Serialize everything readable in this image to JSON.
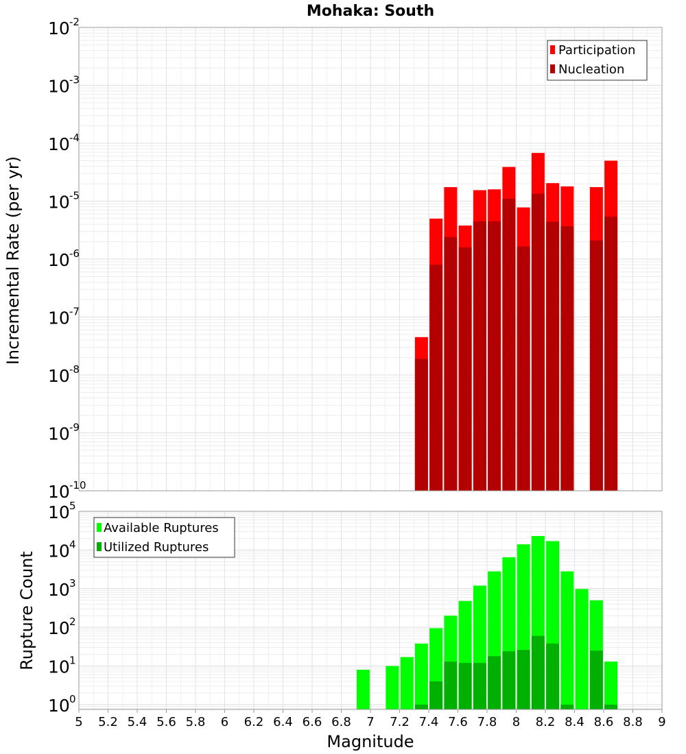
{
  "chart_data": [
    {
      "type": "bar",
      "title": "Mohaka: South",
      "ylabel": "Incremental Rate (per yr)",
      "xlabel": "",
      "yscale": "log",
      "ylim": [
        1e-10,
        0.01
      ],
      "xlim": [
        5,
        9
      ],
      "grid": true,
      "legend_position": "top-right",
      "series": [
        {
          "name": "Participation",
          "color": "#ff0000",
          "x": [
            7.35,
            7.45,
            7.55,
            7.65,
            7.75,
            7.85,
            7.95,
            8.05,
            8.15,
            8.25,
            8.35,
            8.55,
            8.65
          ],
          "values": [
            4.5e-08,
            5e-06,
            1.75e-05,
            3.8e-06,
            1.55e-05,
            1.6e-05,
            3.9e-05,
            7.8e-06,
            6.8e-05,
            2.05e-05,
            1.8e-05,
            1.75e-05,
            5e-05
          ]
        },
        {
          "name": "Nucleation",
          "color": "#b30000",
          "x": [
            7.35,
            7.45,
            7.55,
            7.65,
            7.75,
            7.85,
            7.95,
            8.05,
            8.15,
            8.25,
            8.35,
            8.55,
            8.65
          ],
          "values": [
            1.9e-08,
            8e-07,
            2.4e-06,
            1.6e-06,
            4.5e-06,
            4.5e-06,
            1.1e-05,
            1.65e-06,
            1.35e-05,
            4.4e-06,
            3.7e-06,
            2.1e-06,
            5.4e-06
          ]
        }
      ]
    },
    {
      "type": "bar",
      "title": "",
      "ylabel": "Rupture Count",
      "xlabel": "Magnitude",
      "yscale": "log",
      "ylim": [
        0.75,
        100000.0
      ],
      "xlim": [
        5,
        9
      ],
      "xticks": [
        "5",
        "5.2",
        "5.4",
        "5.6",
        "5.8",
        "6",
        "6.2",
        "6.4",
        "6.6",
        "6.8",
        "7",
        "7.2",
        "7.4",
        "7.6",
        "7.8",
        "8",
        "8.2",
        "8.4",
        "8.6",
        "8.8",
        "9"
      ],
      "grid": true,
      "legend_position": "top-left",
      "series": [
        {
          "name": "Available Ruptures",
          "color": "#00ff00",
          "x": [
            6.95,
            7.15,
            7.25,
            7.35,
            7.45,
            7.55,
            7.65,
            7.75,
            7.85,
            7.95,
            8.05,
            8.15,
            8.25,
            8.35,
            8.45,
            8.55,
            8.65
          ],
          "values": [
            8,
            10,
            17,
            38,
            95,
            200,
            480,
            1200,
            2800,
            6500,
            14000,
            23000,
            17000,
            2800,
            980,
            500,
            13
          ]
        },
        {
          "name": "Utilized Ruptures",
          "color": "#00b000",
          "x": [
            7.35,
            7.45,
            7.55,
            7.65,
            7.75,
            7.85,
            7.95,
            8.05,
            8.15,
            8.25,
            8.35,
            8.55,
            8.65
          ],
          "values": [
            1,
            4,
            13,
            12,
            12,
            18,
            24,
            26,
            60,
            38,
            1,
            25,
            1
          ]
        }
      ]
    }
  ]
}
